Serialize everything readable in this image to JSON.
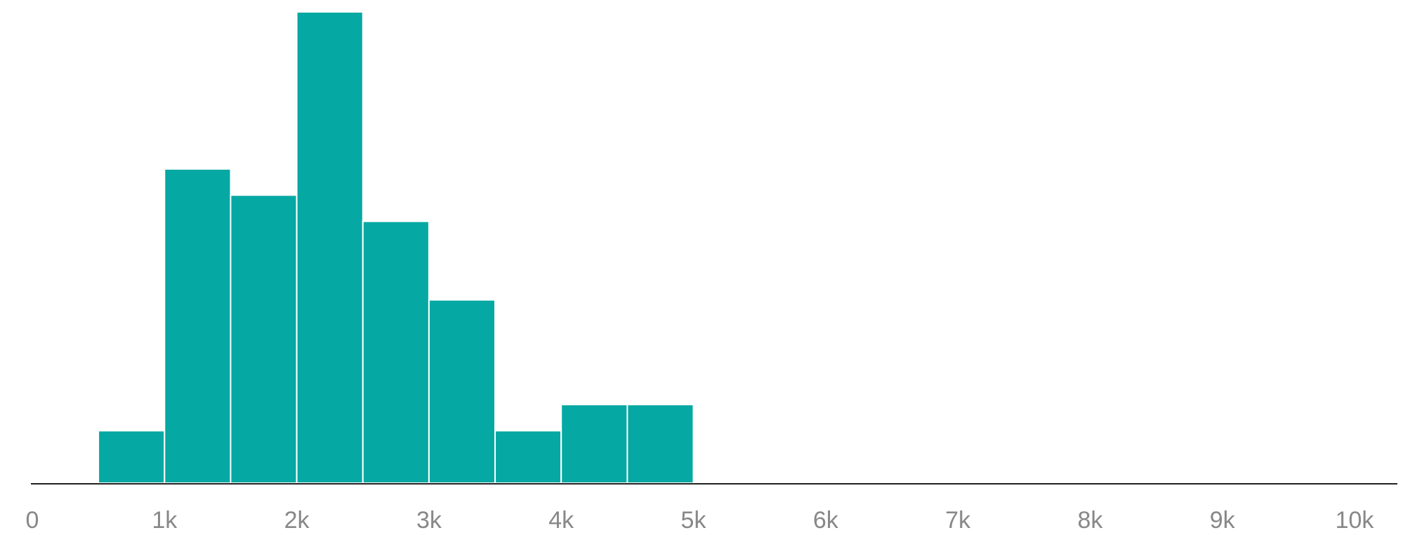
{
  "chart_data": {
    "type": "bar",
    "subtype": "histogram",
    "title": "",
    "xlabel": "",
    "ylabel": "",
    "bins": [
      {
        "x0": 500,
        "x1": 1000,
        "value": 2
      },
      {
        "x0": 1000,
        "x1": 1500,
        "value": 12
      },
      {
        "x0": 1500,
        "x1": 2000,
        "value": 11
      },
      {
        "x0": 2000,
        "x1": 2500,
        "value": 18
      },
      {
        "x0": 2500,
        "x1": 3000,
        "value": 10
      },
      {
        "x0": 3000,
        "x1": 3500,
        "value": 7
      },
      {
        "x0": 3500,
        "x1": 4000,
        "value": 2
      },
      {
        "x0": 4000,
        "x1": 4500,
        "value": 3
      },
      {
        "x0": 4500,
        "x1": 5000,
        "value": 3
      }
    ],
    "xlim": [
      0,
      10500
    ],
    "ylim": [
      0,
      18
    ],
    "x_ticks": [
      {
        "value": 0,
        "label": "0"
      },
      {
        "value": 1000,
        "label": "1k"
      },
      {
        "value": 2000,
        "label": "2k"
      },
      {
        "value": 3000,
        "label": "3k"
      },
      {
        "value": 4000,
        "label": "4k"
      },
      {
        "value": 5000,
        "label": "5k"
      },
      {
        "value": 6000,
        "label": "6k"
      },
      {
        "value": 7000,
        "label": "7k"
      },
      {
        "value": 8000,
        "label": "8k"
      },
      {
        "value": 9000,
        "label": "9k"
      },
      {
        "value": 10000,
        "label": "10k"
      }
    ],
    "bar_color": "#06a8a3",
    "axis_color": "#222222",
    "tick_label_color": "#888888",
    "grid": false,
    "legend": "none"
  }
}
